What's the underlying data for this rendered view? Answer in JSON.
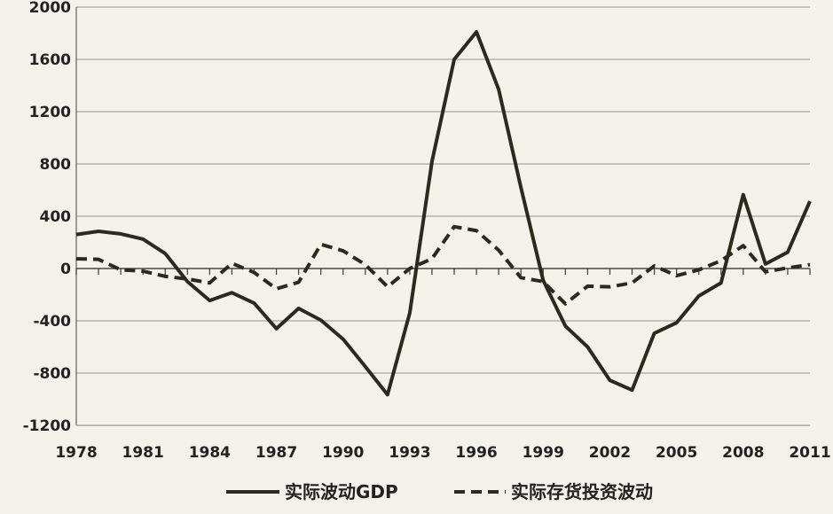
{
  "chart_data": {
    "type": "line",
    "title": "",
    "xlabel": "",
    "ylabel": "",
    "ylim": [
      -1200,
      2000
    ],
    "yticks": [
      2000,
      1600,
      1200,
      800,
      400,
      0,
      -400,
      -800,
      -1200
    ],
    "xlim": [
      1978,
      2011
    ],
    "xticks": [
      1978,
      1981,
      1984,
      1987,
      1990,
      1993,
      1996,
      1999,
      2002,
      2005,
      2008,
      2011
    ],
    "grid": "horizontal",
    "legend_position": "bottom",
    "x": [
      1978,
      1979,
      1980,
      1981,
      1982,
      1983,
      1984,
      1985,
      1986,
      1987,
      1988,
      1989,
      1990,
      1991,
      1992,
      1993,
      1994,
      1995,
      1996,
      1997,
      1998,
      1999,
      2000,
      2001,
      2002,
      2003,
      2004,
      2005,
      2006,
      2007,
      2008,
      2009,
      2010,
      2011
    ],
    "series": [
      {
        "name": "实际波动GDP",
        "style": "solid",
        "color": "#2b2a1e",
        "values": [
          260,
          285,
          265,
          225,
          115,
          -100,
          -245,
          -185,
          -265,
          -460,
          -305,
          -395,
          -540,
          -750,
          -965,
          -340,
          820,
          1600,
          1810,
          1370,
          620,
          -90,
          -440,
          -600,
          -855,
          -930,
          -495,
          -415,
          -210,
          -110,
          565,
          35,
          125,
          515
        ]
      },
      {
        "name": "实际存货投资波动",
        "style": "dashed",
        "color": "#2b2a1e",
        "values": [
          75,
          70,
          -10,
          -20,
          -60,
          -80,
          -110,
          40,
          -30,
          -155,
          -105,
          185,
          135,
          30,
          -140,
          0,
          75,
          320,
          290,
          140,
          -70,
          -100,
          -270,
          -135,
          -140,
          -110,
          20,
          -55,
          -10,
          60,
          175,
          -25,
          5,
          30
        ]
      }
    ]
  }
}
